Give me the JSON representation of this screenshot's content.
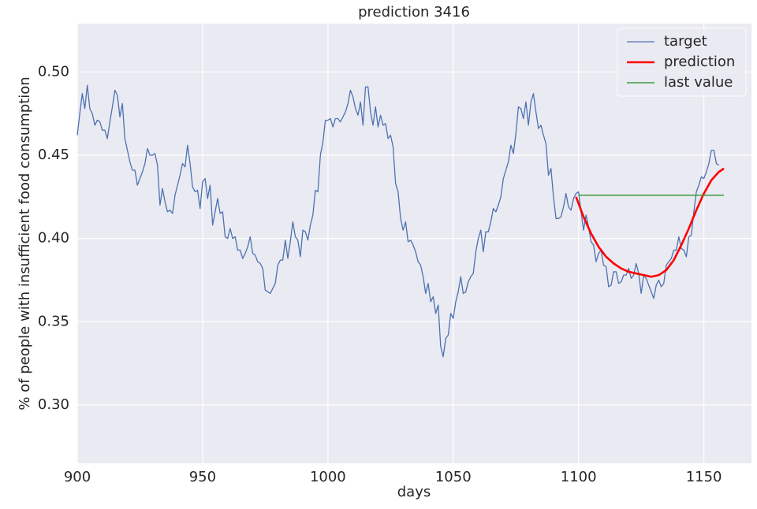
{
  "chart_data": {
    "type": "line",
    "title": "prediction 3416",
    "xlabel": "days",
    "ylabel": "% of people with insufficient food consumption",
    "xlim": [
      900,
      1169
    ],
    "ylim": [
      0.265,
      0.529
    ],
    "xticks": [
      900,
      950,
      1000,
      1050,
      1100,
      1150
    ],
    "yticks": [
      {
        "value": 0.3,
        "label": "0.30"
      },
      0.35,
      {
        "value": 0.4,
        "label": "0.40"
      },
      0.45,
      {
        "value": 0.5,
        "label": "0.50"
      }
    ],
    "grid": true,
    "legend": "upper right",
    "series": [
      {
        "name": "target",
        "color": "#4c72b0",
        "width": 1.3,
        "x": [
          900,
          901,
          902,
          903,
          904,
          905,
          906,
          907,
          908,
          909,
          910,
          911,
          912,
          913,
          914,
          915,
          916,
          917,
          918,
          919,
          920,
          921,
          922,
          923,
          924,
          925,
          926,
          927,
          928,
          929,
          930,
          931,
          932,
          933,
          934,
          935,
          936,
          937,
          938,
          939,
          940,
          941,
          942,
          943,
          944,
          945,
          946,
          947,
          948,
          949,
          950,
          951,
          952,
          953,
          954,
          955,
          956,
          957,
          958,
          959,
          960,
          961,
          962,
          963,
          964,
          965,
          966,
          967,
          968,
          969,
          970,
          971,
          972,
          973,
          974,
          975,
          976,
          977,
          978,
          979,
          980,
          981,
          982,
          983,
          984,
          985,
          986,
          987,
          988,
          989,
          990,
          991,
          992,
          993,
          994,
          995,
          996,
          997,
          998,
          999,
          1000,
          1001,
          1002,
          1003,
          1004,
          1005,
          1006,
          1007,
          1008,
          1009,
          1010,
          1011,
          1012,
          1013,
          1014,
          1015,
          1016,
          1017,
          1018,
          1019,
          1020,
          1021,
          1022,
          1023,
          1024,
          1025,
          1026,
          1027,
          1028,
          1029,
          1030,
          1031,
          1032,
          1033,
          1034,
          1035,
          1036,
          1037,
          1038,
          1039,
          1040,
          1041,
          1042,
          1043,
          1044,
          1045,
          1046,
          1047,
          1048,
          1049,
          1050,
          1051,
          1052,
          1053,
          1054,
          1055,
          1056,
          1057,
          1058,
          1059,
          1060,
          1061,
          1062,
          1063,
          1064,
          1065,
          1066,
          1067,
          1068,
          1069,
          1070,
          1071,
          1072,
          1073,
          1074,
          1075,
          1076,
          1077,
          1078,
          1079,
          1080,
          1081,
          1082,
          1083,
          1084,
          1085,
          1086,
          1087,
          1088,
          1089,
          1090,
          1091,
          1092,
          1093,
          1094,
          1095,
          1096,
          1097,
          1098,
          1099,
          1100,
          1101,
          1102,
          1103,
          1104,
          1105,
          1106,
          1107,
          1108,
          1109,
          1110,
          1111,
          1112,
          1113,
          1114,
          1115,
          1116,
          1117,
          1118,
          1119,
          1120,
          1121,
          1122,
          1123,
          1124,
          1125,
          1126,
          1127,
          1128,
          1129,
          1130,
          1131,
          1132,
          1133,
          1134,
          1135,
          1136,
          1137,
          1138,
          1139,
          1140,
          1141,
          1142,
          1143,
          1144,
          1145,
          1146,
          1147,
          1148,
          1149,
          1150,
          1151,
          1152,
          1153,
          1154,
          1155,
          1156
        ],
        "values": [
          0.462,
          0.475,
          0.487,
          0.478,
          0.492,
          0.478,
          0.475,
          0.468,
          0.471,
          0.47,
          0.465,
          0.465,
          0.46,
          0.47,
          0.479,
          0.489,
          0.486,
          0.473,
          0.481,
          0.46,
          0.453,
          0.446,
          0.441,
          0.441,
          0.432,
          0.436,
          0.44,
          0.445,
          0.454,
          0.45,
          0.45,
          0.451,
          0.444,
          0.42,
          0.43,
          0.422,
          0.416,
          0.417,
          0.415,
          0.426,
          0.432,
          0.438,
          0.445,
          0.443,
          0.456,
          0.445,
          0.431,
          0.428,
          0.429,
          0.418,
          0.434,
          0.436,
          0.424,
          0.432,
          0.408,
          0.416,
          0.424,
          0.415,
          0.416,
          0.401,
          0.4,
          0.406,
          0.4,
          0.401,
          0.393,
          0.393,
          0.388,
          0.391,
          0.395,
          0.401,
          0.391,
          0.39,
          0.386,
          0.385,
          0.382,
          0.369,
          0.368,
          0.367,
          0.37,
          0.373,
          0.384,
          0.387,
          0.387,
          0.399,
          0.388,
          0.398,
          0.41,
          0.401,
          0.399,
          0.389,
          0.405,
          0.404,
          0.399,
          0.408,
          0.414,
          0.429,
          0.428,
          0.45,
          0.458,
          0.471,
          0.471,
          0.472,
          0.467,
          0.472,
          0.472,
          0.47,
          0.473,
          0.476,
          0.481,
          0.489,
          0.485,
          0.478,
          0.474,
          0.482,
          0.468,
          0.491,
          0.491,
          0.476,
          0.468,
          0.479,
          0.467,
          0.474,
          0.468,
          0.469,
          0.46,
          0.462,
          0.455,
          0.433,
          0.428,
          0.412,
          0.405,
          0.41,
          0.398,
          0.399,
          0.396,
          0.392,
          0.386,
          0.384,
          0.377,
          0.367,
          0.373,
          0.362,
          0.365,
          0.355,
          0.36,
          0.335,
          0.329,
          0.34,
          0.342,
          0.355,
          0.352,
          0.362,
          0.368,
          0.377,
          0.367,
          0.368,
          0.374,
          0.377,
          0.379,
          0.392,
          0.4,
          0.405,
          0.392,
          0.404,
          0.404,
          0.41,
          0.418,
          0.416,
          0.42,
          0.425,
          0.436,
          0.441,
          0.446,
          0.456,
          0.451,
          0.463,
          0.479,
          0.478,
          0.472,
          0.482,
          0.468,
          0.482,
          0.487,
          0.476,
          0.466,
          0.468,
          0.462,
          0.457,
          0.438,
          0.442,
          0.425,
          0.412,
          0.412,
          0.413,
          0.419,
          0.427,
          0.419,
          0.417,
          0.424,
          0.427,
          0.428,
          0.416,
          0.405,
          0.414,
          0.407,
          0.398,
          0.396,
          0.386,
          0.391,
          0.393,
          0.384,
          0.383,
          0.371,
          0.372,
          0.38,
          0.38,
          0.373,
          0.374,
          0.378,
          0.378,
          0.382,
          0.376,
          0.378,
          0.385,
          0.379,
          0.367,
          0.378,
          0.376,
          0.372,
          0.368,
          0.364,
          0.372,
          0.375,
          0.371,
          0.373,
          0.384,
          0.386,
          0.388,
          0.393,
          0.393,
          0.401,
          0.394,
          0.393,
          0.389,
          0.401,
          0.402,
          0.416,
          0.428,
          0.432,
          0.437,
          0.436,
          0.44,
          0.445,
          0.453,
          0.453,
          0.445,
          0.444
        ]
      },
      {
        "name": "prediction",
        "color": "#ff0000",
        "width": 2.6,
        "x": [
          1099,
          1102,
          1105,
          1108,
          1111,
          1114,
          1117,
          1120,
          1123,
          1126,
          1129,
          1132,
          1135,
          1138,
          1141,
          1144,
          1147,
          1150,
          1153,
          1156,
          1158
        ],
        "values": [
          0.425,
          0.413,
          0.403,
          0.395,
          0.389,
          0.385,
          0.382,
          0.38,
          0.379,
          0.378,
          0.377,
          0.378,
          0.381,
          0.387,
          0.396,
          0.406,
          0.417,
          0.427,
          0.435,
          0.44,
          0.442
        ]
      },
      {
        "name": "last value",
        "color": "#3a9a3a",
        "width": 1.5,
        "x": [
          1100,
          1158
        ],
        "values": [
          0.426,
          0.426
        ]
      }
    ]
  }
}
